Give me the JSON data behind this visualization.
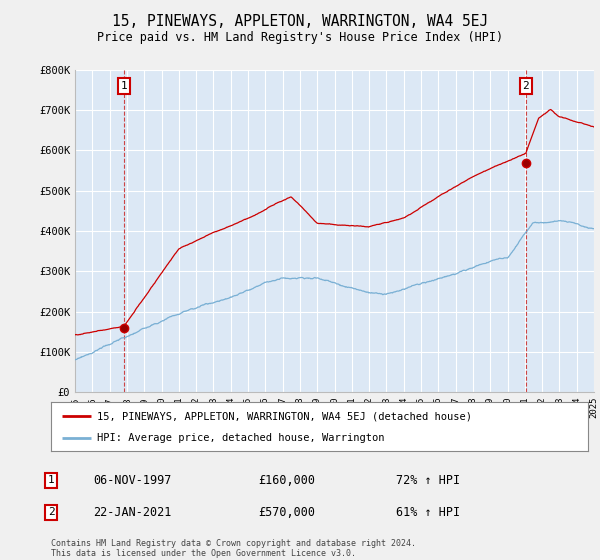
{
  "title": "15, PINEWAYS, APPLETON, WARRINGTON, WA4 5EJ",
  "subtitle": "Price paid vs. HM Land Registry's House Price Index (HPI)",
  "background_color": "#f0f0f0",
  "plot_bg_color": "#dce8f5",
  "ylim": [
    0,
    800000
  ],
  "yticks": [
    0,
    100000,
    200000,
    300000,
    400000,
    500000,
    600000,
    700000,
    800000
  ],
  "ytick_labels": [
    "£0",
    "£100K",
    "£200K",
    "£300K",
    "£400K",
    "£500K",
    "£600K",
    "£700K",
    "£800K"
  ],
  "xmin_year": 1995,
  "xmax_year": 2025,
  "xtick_years": [
    1995,
    1996,
    1997,
    1998,
    1999,
    2000,
    2001,
    2002,
    2003,
    2004,
    2005,
    2006,
    2007,
    2008,
    2009,
    2010,
    2011,
    2012,
    2013,
    2014,
    2015,
    2016,
    2017,
    2018,
    2019,
    2020,
    2021,
    2022,
    2023,
    2024,
    2025
  ],
  "sale1_x": 1997.85,
  "sale1_y": 160000,
  "sale1_label": "1",
  "sale2_x": 2021.05,
  "sale2_y": 570000,
  "sale2_label": "2",
  "red_line_color": "#cc0000",
  "blue_line_color": "#7ab0d4",
  "legend_label_red": "15, PINEWAYS, APPLETON, WARRINGTON, WA4 5EJ (detached house)",
  "legend_label_blue": "HPI: Average price, detached house, Warrington",
  "annotation1_date": "06-NOV-1997",
  "annotation1_price": "£160,000",
  "annotation1_hpi": "72% ↑ HPI",
  "annotation2_date": "22-JAN-2021",
  "annotation2_price": "£570,000",
  "annotation2_hpi": "61% ↑ HPI",
  "footer": "Contains HM Land Registry data © Crown copyright and database right 2024.\nThis data is licensed under the Open Government Licence v3.0.",
  "grid_color": "#ffffff"
}
